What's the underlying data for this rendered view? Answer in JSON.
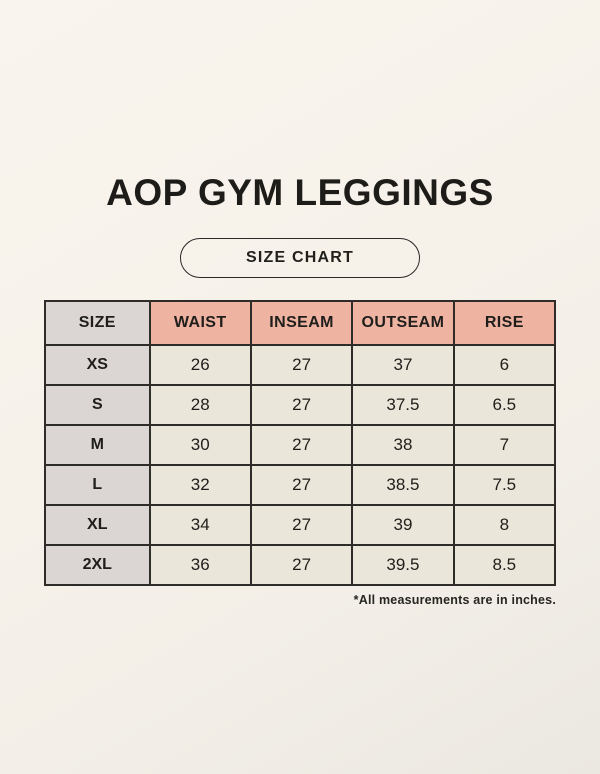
{
  "header": {
    "title": "AOP GYM LEGGINGS",
    "badge_label": "SIZE CHART"
  },
  "table": {
    "columns": [
      "SIZE",
      "WAIST",
      "INSEAM",
      "OUTSEAM",
      "RISE"
    ],
    "rows": [
      {
        "size": "XS",
        "waist": "26",
        "inseam": "27",
        "outseam": "37",
        "rise": "6"
      },
      {
        "size": "S",
        "waist": "28",
        "inseam": "27",
        "outseam": "37.5",
        "rise": "6.5"
      },
      {
        "size": "M",
        "waist": "30",
        "inseam": "27",
        "outseam": "38",
        "rise": "7"
      },
      {
        "size": "L",
        "waist": "32",
        "inseam": "27",
        "outseam": "38.5",
        "rise": "7.5"
      },
      {
        "size": "XL",
        "waist": "34",
        "inseam": "27",
        "outseam": "39",
        "rise": "8"
      },
      {
        "size": "2XL",
        "waist": "36",
        "inseam": "27",
        "outseam": "39.5",
        "rise": "8.5"
      }
    ]
  },
  "footnote": "*All measurements are in inches.",
  "colors": {
    "background_top": "#f9f5ee",
    "background_bottom": "#ebe8e1",
    "header_salmon": "#efb3a2",
    "size_column_gray": "#dbd6d3",
    "cell_cream": "#ebe6da",
    "border": "#2e2c28",
    "text": "#1f1e1b"
  }
}
